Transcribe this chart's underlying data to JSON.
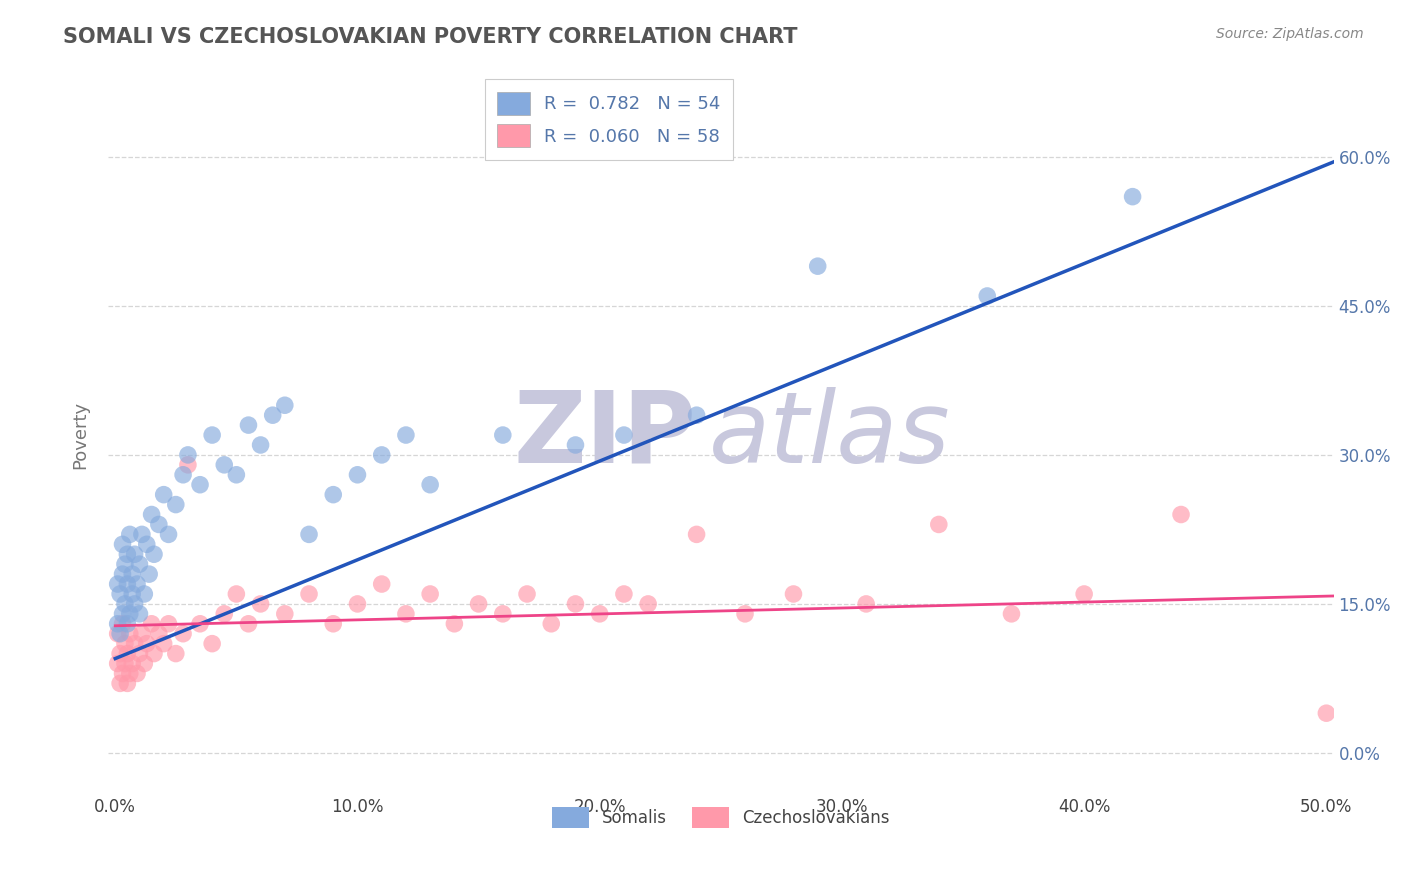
{
  "title": "SOMALI VS CZECHOSLOVAKIAN POVERTY CORRELATION CHART",
  "source_text": "Source: ZipAtlas.com",
  "ylabel": "Poverty",
  "xlim": [
    -0.003,
    0.503
  ],
  "ylim": [
    -0.04,
    0.68
  ],
  "xticks": [
    0.0,
    0.1,
    0.2,
    0.3,
    0.4,
    0.5
  ],
  "xtick_labels": [
    "0.0%",
    "10.0%",
    "20.0%",
    "30.0%",
    "40.0%",
    "50.0%"
  ],
  "yticks": [
    0.0,
    0.15,
    0.3,
    0.45,
    0.6
  ],
  "ytick_labels": [
    "0.0%",
    "15.0%",
    "30.0%",
    "45.0%",
    "60.0%"
  ],
  "somali_R": 0.782,
  "somali_N": 54,
  "czech_R": 0.06,
  "czech_N": 58,
  "somali_color": "#85AADD",
  "czech_color": "#FF99AA",
  "somali_line_color": "#2255BB",
  "czech_line_color": "#EE4488",
  "background_color": "#FFFFFF",
  "grid_color": "#CCCCCC",
  "title_color": "#555555",
  "axis_label_color": "#777777",
  "tick_color": "#5577AA",
  "watermark_zip": "ZIP",
  "watermark_atlas": "atlas",
  "watermark_color": "#C8C8DD",
  "somali_x": [
    0.001,
    0.001,
    0.002,
    0.002,
    0.003,
    0.003,
    0.003,
    0.004,
    0.004,
    0.005,
    0.005,
    0.005,
    0.006,
    0.006,
    0.007,
    0.007,
    0.008,
    0.008,
    0.009,
    0.01,
    0.01,
    0.011,
    0.012,
    0.013,
    0.014,
    0.015,
    0.016,
    0.018,
    0.02,
    0.022,
    0.025,
    0.028,
    0.03,
    0.035,
    0.04,
    0.045,
    0.05,
    0.055,
    0.06,
    0.065,
    0.07,
    0.08,
    0.09,
    0.1,
    0.11,
    0.12,
    0.13,
    0.16,
    0.19,
    0.21,
    0.24,
    0.29,
    0.36,
    0.42
  ],
  "somali_y": [
    0.13,
    0.17,
    0.12,
    0.16,
    0.14,
    0.18,
    0.21,
    0.15,
    0.19,
    0.13,
    0.17,
    0.2,
    0.14,
    0.22,
    0.16,
    0.18,
    0.15,
    0.2,
    0.17,
    0.14,
    0.19,
    0.22,
    0.16,
    0.21,
    0.18,
    0.24,
    0.2,
    0.23,
    0.26,
    0.22,
    0.25,
    0.28,
    0.3,
    0.27,
    0.32,
    0.29,
    0.28,
    0.33,
    0.31,
    0.34,
    0.35,
    0.22,
    0.26,
    0.28,
    0.3,
    0.32,
    0.27,
    0.32,
    0.31,
    0.32,
    0.34,
    0.49,
    0.46,
    0.56
  ],
  "somali_line_x": [
    0.0,
    0.503
  ],
  "somali_line_y": [
    0.095,
    0.595
  ],
  "czech_x": [
    0.001,
    0.001,
    0.002,
    0.002,
    0.003,
    0.003,
    0.004,
    0.004,
    0.005,
    0.005,
    0.006,
    0.006,
    0.007,
    0.008,
    0.009,
    0.01,
    0.011,
    0.012,
    0.013,
    0.015,
    0.016,
    0.018,
    0.02,
    0.022,
    0.025,
    0.028,
    0.03,
    0.035,
    0.04,
    0.045,
    0.05,
    0.055,
    0.06,
    0.07,
    0.08,
    0.09,
    0.1,
    0.11,
    0.12,
    0.13,
    0.14,
    0.15,
    0.16,
    0.17,
    0.18,
    0.19,
    0.2,
    0.21,
    0.22,
    0.24,
    0.26,
    0.28,
    0.31,
    0.34,
    0.37,
    0.4,
    0.44,
    0.5
  ],
  "czech_y": [
    0.09,
    0.12,
    0.07,
    0.1,
    0.08,
    0.13,
    0.09,
    0.11,
    0.07,
    0.1,
    0.08,
    0.12,
    0.09,
    0.11,
    0.08,
    0.1,
    0.12,
    0.09,
    0.11,
    0.13,
    0.1,
    0.12,
    0.11,
    0.13,
    0.1,
    0.12,
    0.29,
    0.13,
    0.11,
    0.14,
    0.16,
    0.13,
    0.15,
    0.14,
    0.16,
    0.13,
    0.15,
    0.17,
    0.14,
    0.16,
    0.13,
    0.15,
    0.14,
    0.16,
    0.13,
    0.15,
    0.14,
    0.16,
    0.15,
    0.22,
    0.14,
    0.16,
    0.15,
    0.23,
    0.14,
    0.16,
    0.24,
    0.04
  ],
  "czech_line_x": [
    0.0,
    0.503
  ],
  "czech_line_y": [
    0.128,
    0.158
  ]
}
